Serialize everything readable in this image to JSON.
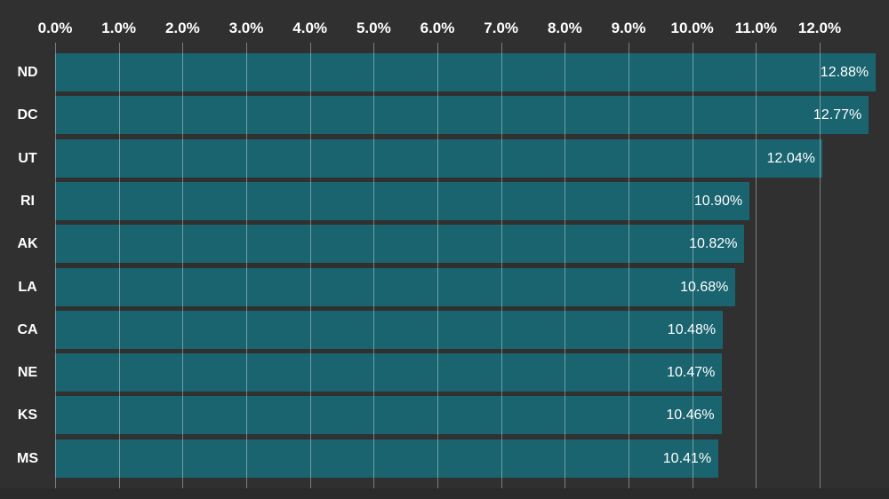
{
  "chart_data": {
    "type": "bar",
    "orientation": "horizontal",
    "categories": [
      "ND",
      "DC",
      "UT",
      "RI",
      "AK",
      "LA",
      "CA",
      "NE",
      "KS",
      "MS"
    ],
    "values": [
      12.88,
      12.77,
      12.04,
      10.9,
      10.82,
      10.68,
      10.48,
      10.47,
      10.46,
      10.41
    ],
    "value_labels": [
      "12.88%",
      "12.77%",
      "12.04%",
      "10.90%",
      "10.82%",
      "10.68%",
      "10.48%",
      "10.47%",
      "10.46%",
      "10.41%"
    ],
    "x_ticks": [
      "0.0%",
      "1.0%",
      "2.0%",
      "3.0%",
      "4.0%",
      "5.0%",
      "6.0%",
      "7.0%",
      "8.0%",
      "9.0%",
      "10.0%",
      "11.0%",
      "12.0%"
    ],
    "x_tick_values": [
      0,
      1,
      2,
      3,
      4,
      5,
      6,
      7,
      8,
      9,
      10,
      11,
      12
    ],
    "xlim": [
      0,
      13.08
    ],
    "axis_position": "top",
    "grid": "vertical",
    "legend": "none",
    "title": "",
    "colors": {
      "background": "#303030",
      "bar": "#1a6470",
      "gridline": "rgba(255,255,255,0.38)",
      "text": "#ffffff"
    }
  }
}
